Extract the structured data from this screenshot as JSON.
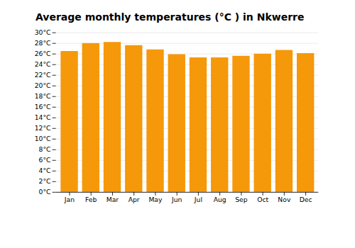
{
  "chart_data": {
    "type": "bar",
    "title": "Average monthly temperatures (°C ) in Nkwerre",
    "categories": [
      "Jan",
      "Feb",
      "Mar",
      "Apr",
      "May",
      "Jun",
      "Jul",
      "Aug",
      "Sep",
      "Oct",
      "Nov",
      "Dec"
    ],
    "values": [
      26.5,
      28.0,
      28.2,
      27.6,
      26.8,
      25.9,
      25.3,
      25.3,
      25.6,
      26.0,
      26.7,
      26.1
    ],
    "color": "#F5980A",
    "ylim": [
      0,
      30
    ],
    "yticks": [
      {
        "value": 0,
        "label": "0°C"
      },
      {
        "value": 2,
        "label": "2°C"
      },
      {
        "value": 4,
        "label": "4°C"
      },
      {
        "value": 6,
        "label": "6°C"
      },
      {
        "value": 8,
        "label": "8°C"
      },
      {
        "value": 10,
        "label": "10°C"
      },
      {
        "value": 12,
        "label": "12°C"
      },
      {
        "value": 14,
        "label": "14°C"
      },
      {
        "value": 16,
        "label": "16°C"
      },
      {
        "value": 18,
        "label": "18°C"
      },
      {
        "value": 20,
        "label": "20°C"
      },
      {
        "value": 22,
        "label": "22°C"
      },
      {
        "value": 24,
        "label": "24°C"
      },
      {
        "value": 26,
        "label": "26°C"
      },
      {
        "value": 28,
        "label": "28°C"
      },
      {
        "value": 30,
        "label": "30°C"
      }
    ],
    "grid": true
  }
}
